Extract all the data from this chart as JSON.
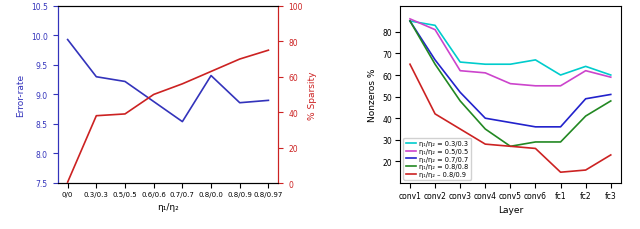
{
  "left": {
    "x_labels": [
      "0/0",
      "0.3/0.3",
      "0.5/0.5",
      "0.6/0.6",
      "0.7/0.7",
      "0.8/0.0",
      "0.8/0.9",
      "0.8/0.97"
    ],
    "error_rate": [
      9.93,
      9.3,
      9.22,
      8.88,
      8.54,
      9.32,
      8.86,
      8.9
    ],
    "sparsity": [
      0.5,
      38,
      39,
      50,
      56,
      63,
      70,
      75
    ],
    "xlabel": "η₁/η₂",
    "ylabel_left": "Error-rate",
    "ylabel_right": "% Sparsity",
    "ylim_left": [
      7.5,
      10.5
    ],
    "ylim_right": [
      0,
      100
    ],
    "color_error": "#3333bb",
    "color_sparsity": "#cc2222"
  },
  "right": {
    "layers": [
      "conv1",
      "conv2",
      "conv3",
      "conv4",
      "conv5",
      "conv6",
      "fc1",
      "fc2",
      "fc3"
    ],
    "series": [
      {
        "label": "η₁/η₂ = 0.3/0.3",
        "color": "#00cccc",
        "values": [
          85,
          83,
          66,
          65,
          65,
          67,
          60,
          64,
          60
        ]
      },
      {
        "label": "η₁/η₂ = 0.5/0.5",
        "color": "#cc44cc",
        "values": [
          86,
          81,
          62,
          61,
          56,
          55,
          55,
          62,
          59
        ]
      },
      {
        "label": "η₁/η₂ = 0.7/0.7",
        "color": "#2222cc",
        "values": [
          85,
          67,
          52,
          40,
          38,
          36,
          36,
          49,
          51
        ]
      },
      {
        "label": "η₁/η₂ = 0.8/0.8",
        "color": "#228822",
        "values": [
          85,
          65,
          48,
          35,
          27,
          29,
          29,
          41,
          48
        ]
      },
      {
        "label": "η₁/η₂ – 0.8/0.9",
        "color": "#cc2222",
        "values": [
          65,
          42,
          35,
          28,
          27,
          26,
          15,
          16,
          23
        ]
      }
    ],
    "xlabel": "Layer",
    "ylabel": "Nonzeros %",
    "ylim": [
      10,
      92
    ],
    "yticks": [
      20,
      30,
      40,
      50,
      60,
      70,
      80
    ]
  }
}
